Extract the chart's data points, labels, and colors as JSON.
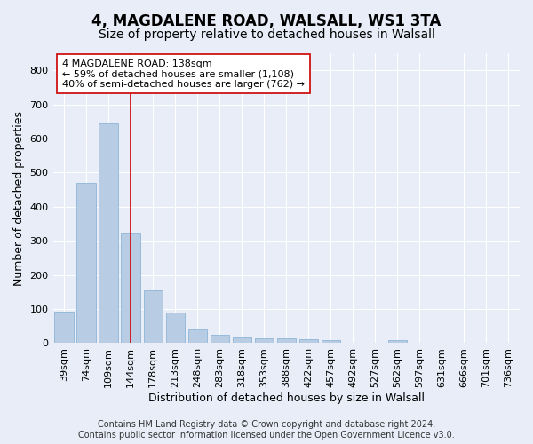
{
  "title": "4, MAGDALENE ROAD, WALSALL, WS1 3TA",
  "subtitle": "Size of property relative to detached houses in Walsall",
  "xlabel": "Distribution of detached houses by size in Walsall",
  "ylabel": "Number of detached properties",
  "categories": [
    "39sqm",
    "74sqm",
    "109sqm",
    "144sqm",
    "178sqm",
    "213sqm",
    "248sqm",
    "283sqm",
    "318sqm",
    "353sqm",
    "388sqm",
    "422sqm",
    "457sqm",
    "492sqm",
    "527sqm",
    "562sqm",
    "597sqm",
    "631sqm",
    "666sqm",
    "701sqm",
    "736sqm"
  ],
  "bar_values": [
    93,
    470,
    645,
    325,
    155,
    90,
    40,
    25,
    18,
    15,
    14,
    12,
    8,
    0,
    0,
    8,
    0,
    0,
    0,
    0,
    0
  ],
  "bar_color": "#b8cce4",
  "bar_edge_color": "#7fadd4",
  "vline_x": 3.0,
  "vline_color": "#cc0000",
  "annotation_text": "4 MAGDALENE ROAD: 138sqm\n← 59% of detached houses are smaller (1,108)\n40% of semi-detached houses are larger (762) →",
  "annotation_box_facecolor": "#ffffff",
  "annotation_box_edgecolor": "#cc0000",
  "ylim": [
    0,
    850
  ],
  "yticks": [
    0,
    100,
    200,
    300,
    400,
    500,
    600,
    700,
    800
  ],
  "bg_color": "#e8edf8",
  "plot_bg_color": "#e8edf8",
  "grid_color": "#ffffff",
  "footer": "Contains HM Land Registry data © Crown copyright and database right 2024.\nContains public sector information licensed under the Open Government Licence v3.0.",
  "title_fontsize": 12,
  "subtitle_fontsize": 10,
  "ylabel_fontsize": 9,
  "xlabel_fontsize": 9,
  "tick_fontsize": 8,
  "annotation_fontsize": 8,
  "footer_fontsize": 7
}
